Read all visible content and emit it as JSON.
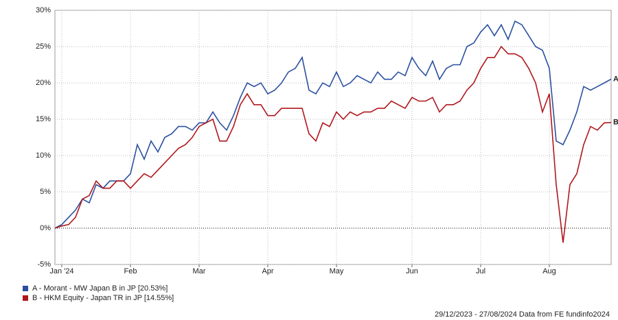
{
  "chart_data": {
    "type": "line",
    "categories": [
      null,
      "Jan '24",
      null,
      null,
      null,
      null,
      null,
      null,
      null,
      null,
      null,
      "Feb",
      null,
      null,
      null,
      null,
      null,
      null,
      null,
      null,
      null,
      "Mar",
      null,
      null,
      null,
      null,
      null,
      null,
      null,
      null,
      null,
      "Apr",
      null,
      null,
      null,
      null,
      null,
      null,
      null,
      null,
      null,
      "May",
      null,
      null,
      null,
      null,
      null,
      null,
      null,
      null,
      null,
      null,
      "Jun",
      null,
      null,
      null,
      null,
      null,
      null,
      null,
      null,
      null,
      "Jul",
      null,
      null,
      null,
      null,
      null,
      null,
      null,
      null,
      null,
      "Aug",
      null,
      null,
      null,
      null,
      null,
      null,
      null,
      null,
      null
    ],
    "series": [
      {
        "name": "A - Morant - MW Japan B in JP [20.53%]",
        "end_label": "A",
        "color": "#2a4fa0",
        "values": [
          0,
          0.5,
          1.5,
          2.5,
          4,
          3.5,
          6,
          5.5,
          6.5,
          6.5,
          6.5,
          7.5,
          11.5,
          9.5,
          12,
          10.5,
          12.5,
          13,
          14,
          14,
          13.5,
          14.5,
          14.5,
          16,
          14.5,
          13.5,
          15.5,
          18,
          20,
          19.5,
          20,
          18.5,
          19,
          20,
          21.5,
          22,
          23.5,
          19,
          18.5,
          20,
          19.5,
          21.5,
          19.5,
          20,
          21,
          20.5,
          20,
          21.5,
          20.5,
          20.5,
          21.5,
          21,
          23.5,
          22,
          21,
          23,
          20.5,
          22,
          22.5,
          22.5,
          25,
          25.5,
          27,
          28,
          26.5,
          28,
          26,
          28.5,
          28,
          26.5,
          25,
          24.5,
          22,
          12,
          11.5,
          13.5,
          16,
          19.5,
          19,
          19.5,
          20,
          20.53
        ]
      },
      {
        "name": "B - HKM Equity - Japan TR in JP [14.55%]",
        "end_label": "B",
        "color": "#b0161b",
        "values": [
          0,
          0.3,
          0.5,
          1.5,
          4,
          4.5,
          6.5,
          5.5,
          5.5,
          6.5,
          6.5,
          5.5,
          6.5,
          7.5,
          7,
          8,
          9,
          10,
          11,
          11.5,
          12.5,
          14,
          14.5,
          15,
          12,
          12,
          14,
          17,
          18.5,
          17,
          17,
          15.5,
          15.5,
          16.5,
          16.5,
          16.5,
          16.5,
          13,
          12,
          14.5,
          14,
          16,
          15,
          16,
          15.5,
          16,
          16,
          16.5,
          16.5,
          17.5,
          17,
          16.5,
          18,
          17.5,
          17.5,
          18,
          16,
          17,
          17,
          17.5,
          19,
          20,
          22,
          23.5,
          23.5,
          25,
          24,
          24,
          23.5,
          22,
          20,
          16,
          18.5,
          6,
          -2,
          6,
          7.5,
          11.5,
          14,
          13.5,
          14.5,
          14.55
        ]
      }
    ],
    "ylim": [
      -5,
      30
    ],
    "yticks": [
      {
        "value": -5,
        "label": "-5%"
      },
      {
        "value": 0,
        "label": "0%"
      },
      {
        "value": 5,
        "label": "5%"
      },
      {
        "value": 10,
        "label": "10%"
      },
      {
        "value": 15,
        "label": "15%"
      },
      {
        "value": 20,
        "label": "20%"
      },
      {
        "value": 25,
        "label": "25%"
      },
      {
        "value": 30,
        "label": "30%"
      }
    ],
    "grid": true,
    "footer": "29/12/2023 - 27/08/2024 Data from FE fundinfo2024"
  }
}
